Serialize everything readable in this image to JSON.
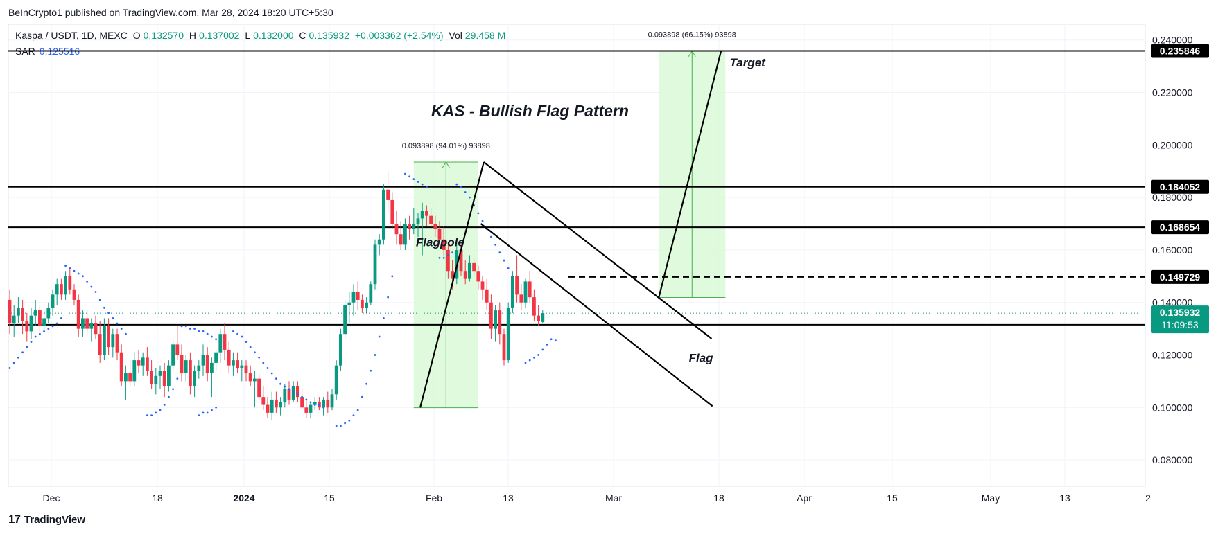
{
  "header": {
    "published_text": "BeInCrypto1 published on TradingView.com, Mar 28, 2024 18:20 UTC+5:30"
  },
  "legend": {
    "symbol": "Kaspa / USDT, 1D, MEXC",
    "o_label": "O",
    "o_value": "0.132570",
    "h_label": "H",
    "h_value": "0.137002",
    "l_label": "L",
    "l_value": "0.132000",
    "c_label": "C",
    "c_value": "0.135932",
    "change": "+0.003362 (+2.54%)",
    "vol_label": "Vol",
    "vol_value": "29.458 M",
    "sar_label": "SAR",
    "sar_value": "0.125516"
  },
  "footer": {
    "brand": "TradingView",
    "logo_icon": "tradingview-logo-icon"
  },
  "colors": {
    "up": "#089981",
    "down": "#f23645",
    "sar": "#2962ff",
    "box_fill": "#dcfad9",
    "box_line": "#4caf50"
  },
  "chart_data": {
    "type": "candlestick",
    "title": "KAS - Bullish Flag Pattern",
    "ylim": [
      0.07,
      0.246
    ],
    "x_tick_labels": [
      "Dec",
      "18",
      "2024",
      "15",
      "Feb",
      "13",
      "Mar",
      "18",
      "Apr",
      "15",
      "May",
      "13",
      "2"
    ],
    "y_tick_labels": [
      "0.240000",
      "0.220000",
      "0.200000",
      "0.180000",
      "0.160000",
      "0.140000",
      "0.120000",
      "0.100000",
      "0.080000"
    ],
    "y_ticks": [
      0.24,
      0.22,
      0.2,
      0.18,
      0.16,
      0.14,
      0.12,
      0.1,
      0.08
    ],
    "levels": [
      {
        "value": 0.235846,
        "label": "0.235846",
        "style": "solid"
      },
      {
        "value": 0.184052,
        "label": "0.184052",
        "style": "solid"
      },
      {
        "value": 0.168654,
        "label": "0.168654",
        "style": "solid"
      },
      {
        "value": 0.149729,
        "label": "0.149729",
        "style": "dashed"
      },
      {
        "value": 0.131503,
        "label": "0.131503",
        "style": "solid"
      }
    ],
    "last_price": {
      "value": 0.135932,
      "label": "0.135932",
      "countdown": "11:09:53"
    },
    "annotations": {
      "flagpole": "Flagpole",
      "flag": "Flag",
      "target": "Target",
      "measure1": "0.093898 (94.01%) 93898",
      "measure2": "0.093898 (66.15%) 93898"
    },
    "candles": [
      [
        0.141,
        0.145,
        0.128,
        0.132
      ],
      [
        0.132,
        0.139,
        0.127,
        0.135
      ],
      [
        0.135,
        0.142,
        0.132,
        0.138
      ],
      [
        0.138,
        0.141,
        0.128,
        0.133
      ],
      [
        0.133,
        0.136,
        0.125,
        0.129
      ],
      [
        0.129,
        0.138,
        0.126,
        0.135
      ],
      [
        0.135,
        0.141,
        0.131,
        0.137
      ],
      [
        0.137,
        0.139,
        0.129,
        0.131
      ],
      [
        0.131,
        0.137,
        0.129,
        0.134
      ],
      [
        0.134,
        0.14,
        0.132,
        0.138
      ],
      [
        0.138,
        0.145,
        0.135,
        0.143
      ],
      [
        0.143,
        0.149,
        0.139,
        0.147
      ],
      [
        0.147,
        0.149,
        0.141,
        0.143
      ],
      [
        0.143,
        0.152,
        0.141,
        0.15
      ],
      [
        0.15,
        0.153,
        0.143,
        0.145
      ],
      [
        0.145,
        0.147,
        0.139,
        0.141
      ],
      [
        0.141,
        0.143,
        0.127,
        0.13
      ],
      [
        0.13,
        0.137,
        0.127,
        0.134
      ],
      [
        0.134,
        0.137,
        0.128,
        0.13
      ],
      [
        0.13,
        0.134,
        0.125,
        0.132
      ],
      [
        0.132,
        0.135,
        0.126,
        0.128
      ],
      [
        0.128,
        0.133,
        0.117,
        0.12
      ],
      [
        0.12,
        0.134,
        0.118,
        0.131
      ],
      [
        0.131,
        0.134,
        0.12,
        0.123
      ],
      [
        0.123,
        0.13,
        0.119,
        0.128
      ],
      [
        0.128,
        0.13,
        0.118,
        0.121
      ],
      [
        0.121,
        0.124,
        0.108,
        0.11
      ],
      [
        0.11,
        0.116,
        0.103,
        0.113
      ],
      [
        0.113,
        0.118,
        0.108,
        0.11
      ],
      [
        0.11,
        0.121,
        0.108,
        0.118
      ],
      [
        0.118,
        0.122,
        0.113,
        0.116
      ],
      [
        0.116,
        0.121,
        0.112,
        0.119
      ],
      [
        0.119,
        0.123,
        0.112,
        0.114
      ],
      [
        0.114,
        0.118,
        0.107,
        0.109
      ],
      [
        0.109,
        0.115,
        0.105,
        0.112
      ],
      [
        0.112,
        0.116,
        0.107,
        0.114
      ],
      [
        0.114,
        0.117,
        0.104,
        0.108
      ],
      [
        0.108,
        0.118,
        0.106,
        0.116
      ],
      [
        0.116,
        0.126,
        0.114,
        0.124
      ],
      [
        0.124,
        0.131,
        0.118,
        0.12
      ],
      [
        0.12,
        0.124,
        0.11,
        0.113
      ],
      [
        0.113,
        0.12,
        0.11,
        0.118
      ],
      [
        0.118,
        0.121,
        0.105,
        0.108
      ],
      [
        0.108,
        0.116,
        0.104,
        0.114
      ],
      [
        0.114,
        0.118,
        0.111,
        0.116
      ],
      [
        0.116,
        0.124,
        0.112,
        0.12
      ],
      [
        0.12,
        0.123,
        0.11,
        0.113
      ],
      [
        0.113,
        0.119,
        0.104,
        0.117
      ],
      [
        0.117,
        0.122,
        0.114,
        0.121
      ],
      [
        0.121,
        0.13,
        0.117,
        0.128
      ],
      [
        0.128,
        0.132,
        0.118,
        0.122
      ],
      [
        0.122,
        0.125,
        0.113,
        0.116
      ],
      [
        0.116,
        0.121,
        0.112,
        0.118
      ],
      [
        0.118,
        0.121,
        0.113,
        0.115
      ],
      [
        0.115,
        0.118,
        0.11,
        0.116
      ],
      [
        0.116,
        0.118,
        0.11,
        0.113
      ],
      [
        0.113,
        0.116,
        0.108,
        0.11
      ],
      [
        0.11,
        0.114,
        0.1,
        0.111
      ],
      [
        0.111,
        0.113,
        0.103,
        0.104
      ],
      [
        0.104,
        0.108,
        0.099,
        0.101
      ],
      [
        0.101,
        0.104,
        0.096,
        0.098
      ],
      [
        0.098,
        0.106,
        0.095,
        0.103
      ],
      [
        0.103,
        0.106,
        0.098,
        0.1
      ],
      [
        0.1,
        0.104,
        0.097,
        0.102
      ],
      [
        0.102,
        0.109,
        0.1,
        0.107
      ],
      [
        0.107,
        0.11,
        0.101,
        0.103
      ],
      [
        0.103,
        0.11,
        0.102,
        0.108
      ],
      [
        0.108,
        0.11,
        0.102,
        0.104
      ],
      [
        0.104,
        0.107,
        0.099,
        0.1
      ],
      [
        0.1,
        0.103,
        0.096,
        0.098
      ],
      [
        0.098,
        0.102,
        0.096,
        0.101
      ],
      [
        0.101,
        0.104,
        0.099,
        0.102
      ],
      [
        0.102,
        0.104,
        0.099,
        0.1
      ],
      [
        0.1,
        0.104,
        0.097,
        0.103
      ],
      [
        0.103,
        0.106,
        0.098,
        0.1
      ],
      [
        0.1,
        0.107,
        0.099,
        0.105
      ],
      [
        0.105,
        0.118,
        0.103,
        0.116
      ],
      [
        0.116,
        0.13,
        0.114,
        0.128
      ],
      [
        0.128,
        0.141,
        0.126,
        0.139
      ],
      [
        0.139,
        0.144,
        0.132,
        0.14
      ],
      [
        0.14,
        0.147,
        0.135,
        0.144
      ],
      [
        0.144,
        0.148,
        0.137,
        0.141
      ],
      [
        0.141,
        0.143,
        0.136,
        0.138
      ],
      [
        0.138,
        0.142,
        0.136,
        0.14
      ],
      [
        0.14,
        0.148,
        0.139,
        0.147
      ],
      [
        0.147,
        0.164,
        0.145,
        0.162
      ],
      [
        0.162,
        0.166,
        0.158,
        0.164
      ],
      [
        0.164,
        0.185,
        0.162,
        0.183
      ],
      [
        0.183,
        0.19,
        0.174,
        0.179
      ],
      [
        0.179,
        0.182,
        0.168,
        0.17
      ],
      [
        0.17,
        0.175,
        0.162,
        0.166
      ],
      [
        0.166,
        0.171,
        0.16,
        0.162
      ],
      [
        0.162,
        0.172,
        0.16,
        0.17
      ],
      [
        0.17,
        0.173,
        0.164,
        0.168
      ],
      [
        0.168,
        0.176,
        0.166,
        0.17
      ],
      [
        0.17,
        0.174,
        0.165,
        0.172
      ],
      [
        0.172,
        0.178,
        0.158,
        0.175
      ],
      [
        0.175,
        0.177,
        0.169,
        0.173
      ],
      [
        0.173,
        0.176,
        0.168,
        0.17
      ],
      [
        0.17,
        0.173,
        0.165,
        0.168
      ],
      [
        0.168,
        0.171,
        0.162,
        0.164
      ],
      [
        0.164,
        0.169,
        0.158,
        0.16
      ],
      [
        0.16,
        0.163,
        0.149,
        0.152
      ],
      [
        0.152,
        0.156,
        0.145,
        0.149
      ],
      [
        0.149,
        0.163,
        0.147,
        0.16
      ],
      [
        0.16,
        0.162,
        0.15,
        0.152
      ],
      [
        0.152,
        0.156,
        0.147,
        0.149
      ],
      [
        0.149,
        0.158,
        0.148,
        0.155
      ],
      [
        0.155,
        0.157,
        0.15,
        0.152
      ],
      [
        0.152,
        0.154,
        0.145,
        0.148
      ],
      [
        0.148,
        0.15,
        0.141,
        0.145
      ],
      [
        0.145,
        0.149,
        0.137,
        0.14
      ],
      [
        0.14,
        0.143,
        0.126,
        0.13
      ],
      [
        0.13,
        0.139,
        0.125,
        0.137
      ],
      [
        0.137,
        0.14,
        0.124,
        0.128
      ],
      [
        0.128,
        0.13,
        0.116,
        0.118
      ],
      [
        0.118,
        0.14,
        0.117,
        0.138
      ],
      [
        0.138,
        0.152,
        0.136,
        0.15
      ],
      [
        0.15,
        0.158,
        0.14,
        0.143
      ],
      [
        0.143,
        0.147,
        0.137,
        0.14
      ],
      [
        0.14,
        0.149,
        0.138,
        0.148
      ],
      [
        0.148,
        0.152,
        0.14,
        0.142
      ],
      [
        0.142,
        0.145,
        0.133,
        0.135
      ],
      [
        0.135,
        0.139,
        0.131,
        0.133
      ],
      [
        0.13257,
        0.137002,
        0.132,
        0.135932
      ]
    ],
    "sar_segments": [
      [
        [
          0,
          0.115
        ],
        [
          1,
          0.117
        ],
        [
          2,
          0.119
        ],
        [
          3,
          0.121
        ],
        [
          4,
          0.123
        ],
        [
          5,
          0.125
        ],
        [
          6,
          0.127
        ],
        [
          7,
          0.128
        ],
        [
          8,
          0.129
        ],
        [
          9,
          0.13
        ],
        [
          10,
          0.131
        ],
        [
          11,
          0.132
        ],
        [
          12,
          0.134
        ]
      ],
      [
        [
          13,
          0.154
        ],
        [
          14,
          0.153
        ],
        [
          15,
          0.152
        ],
        [
          16,
          0.151
        ],
        [
          17,
          0.15
        ],
        [
          18,
          0.148
        ],
        [
          19,
          0.146
        ],
        [
          20,
          0.144
        ],
        [
          21,
          0.141
        ],
        [
          22,
          0.138
        ],
        [
          23,
          0.136
        ],
        [
          24,
          0.134
        ],
        [
          25,
          0.132
        ],
        [
          26,
          0.13
        ],
        [
          27,
          0.128
        ]
      ],
      [
        [
          32,
          0.097
        ],
        [
          33,
          0.097
        ],
        [
          34,
          0.098
        ],
        [
          35,
          0.099
        ],
        [
          36,
          0.101
        ],
        [
          37,
          0.104
        ],
        [
          38,
          0.107
        ],
        [
          39,
          0.111
        ]
      ],
      [
        [
          40,
          0.131
        ],
        [
          41,
          0.131
        ],
        [
          42,
          0.13
        ],
        [
          43,
          0.13
        ],
        [
          44,
          0.129
        ],
        [
          45,
          0.129
        ],
        [
          46,
          0.128
        ],
        [
          47,
          0.127
        ],
        [
          48,
          0.126
        ]
      ],
      [
        [
          44,
          0.097
        ],
        [
          45,
          0.098
        ],
        [
          46,
          0.098
        ],
        [
          47,
          0.099
        ],
        [
          48,
          0.1
        ]
      ],
      [
        [
          52,
          0.129
        ],
        [
          53,
          0.128
        ],
        [
          54,
          0.127
        ],
        [
          55,
          0.125
        ],
        [
          56,
          0.123
        ],
        [
          57,
          0.121
        ],
        [
          58,
          0.119
        ],
        [
          59,
          0.117
        ],
        [
          60,
          0.115
        ],
        [
          61,
          0.113
        ],
        [
          62,
          0.111
        ],
        [
          63,
          0.109
        ],
        [
          64,
          0.108
        ],
        [
          65,
          0.107
        ],
        [
          66,
          0.106
        ],
        [
          67,
          0.105
        ],
        [
          68,
          0.104
        ],
        [
          69,
          0.103
        ],
        [
          70,
          0.102
        ],
        [
          71,
          0.101
        ],
        [
          72,
          0.101
        ],
        [
          73,
          0.1
        ]
      ],
      [
        [
          76,
          0.093
        ],
        [
          77,
          0.093
        ],
        [
          78,
          0.094
        ],
        [
          79,
          0.095
        ],
        [
          80,
          0.097
        ],
        [
          81,
          0.099
        ],
        [
          82,
          0.104
        ],
        [
          83,
          0.109
        ],
        [
          84,
          0.114
        ],
        [
          85,
          0.12
        ],
        [
          86,
          0.127
        ],
        [
          87,
          0.134
        ],
        [
          88,
          0.142
        ],
        [
          89,
          0.15
        ]
      ],
      [
        [
          92,
          0.189
        ],
        [
          93,
          0.188
        ],
        [
          94,
          0.187
        ],
        [
          95,
          0.186
        ],
        [
          96,
          0.185
        ],
        [
          97,
          0.184
        ]
      ],
      [
        [
          100,
          0.157
        ],
        [
          101,
          0.157
        ],
        [
          102,
          0.158
        ],
        [
          103,
          0.159
        ]
      ],
      [
        [
          104,
          0.185
        ],
        [
          105,
          0.184
        ],
        [
          106,
          0.182
        ],
        [
          107,
          0.18
        ],
        [
          108,
          0.177
        ],
        [
          109,
          0.174
        ],
        [
          110,
          0.171
        ],
        [
          111,
          0.168
        ],
        [
          112,
          0.165
        ],
        [
          113,
          0.162
        ],
        [
          114,
          0.159
        ],
        [
          115,
          0.156
        ],
        [
          116,
          0.153
        ]
      ],
      [
        [
          120,
          0.117
        ],
        [
          121,
          0.118
        ],
        [
          122,
          0.119
        ],
        [
          123,
          0.12
        ],
        [
          124,
          0.122
        ],
        [
          125,
          0.124
        ],
        [
          126,
          0.126
        ],
        [
          127,
          0.1255
        ]
      ]
    ]
  }
}
